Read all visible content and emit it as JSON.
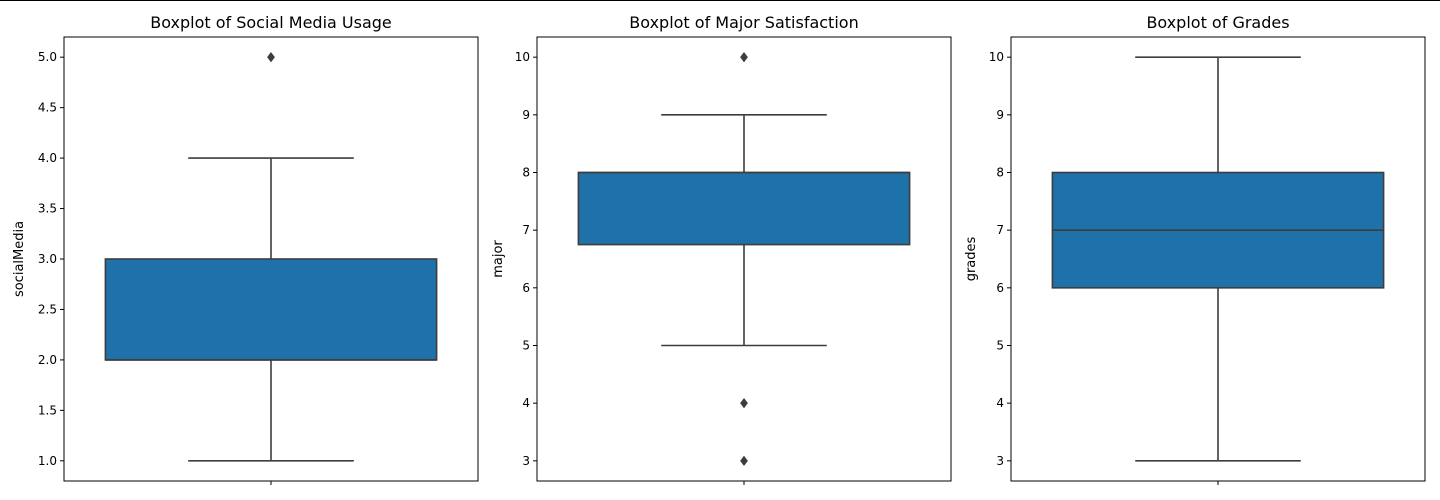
{
  "chart_data": [
    {
      "type": "box",
      "title": "Boxplot of Social Media Usage",
      "xlabel": "",
      "ylabel": "socialMedia",
      "ylim": [
        0.8,
        5.2
      ],
      "yticks": [
        1.0,
        1.5,
        2.0,
        2.5,
        3.0,
        3.5,
        4.0,
        4.5,
        5.0
      ],
      "tick_decimals": 1,
      "grid": false,
      "box": {
        "whisker_low": 1.0,
        "q1": 2.0,
        "median": 2.0,
        "q3": 3.0,
        "whisker_high": 4.0
      },
      "outliers": [
        5.0
      ]
    },
    {
      "type": "box",
      "title": "Boxplot of Major Satisfaction",
      "xlabel": "",
      "ylabel": "major",
      "ylim": [
        2.65,
        10.35
      ],
      "yticks": [
        3,
        4,
        5,
        6,
        7,
        8,
        9,
        10
      ],
      "tick_decimals": 0,
      "grid": false,
      "box": {
        "whisker_low": 5,
        "q1": 6.75,
        "median": 8,
        "q3": 8,
        "whisker_high": 9
      },
      "outliers": [
        10,
        4,
        3
      ]
    },
    {
      "type": "box",
      "title": "Boxplot of Grades",
      "xlabel": "",
      "ylabel": "grades",
      "ylim": [
        2.65,
        10.35
      ],
      "yticks": [
        3,
        4,
        5,
        6,
        7,
        8,
        9,
        10
      ],
      "tick_decimals": 0,
      "grid": false,
      "box": {
        "whisker_low": 3,
        "q1": 6,
        "median": 7,
        "q3": 8,
        "whisker_high": 10
      },
      "outliers": []
    }
  ],
  "colors": {
    "box_fill": "#1f71a9",
    "line": "#3d3d3d",
    "axes": "#000000"
  }
}
